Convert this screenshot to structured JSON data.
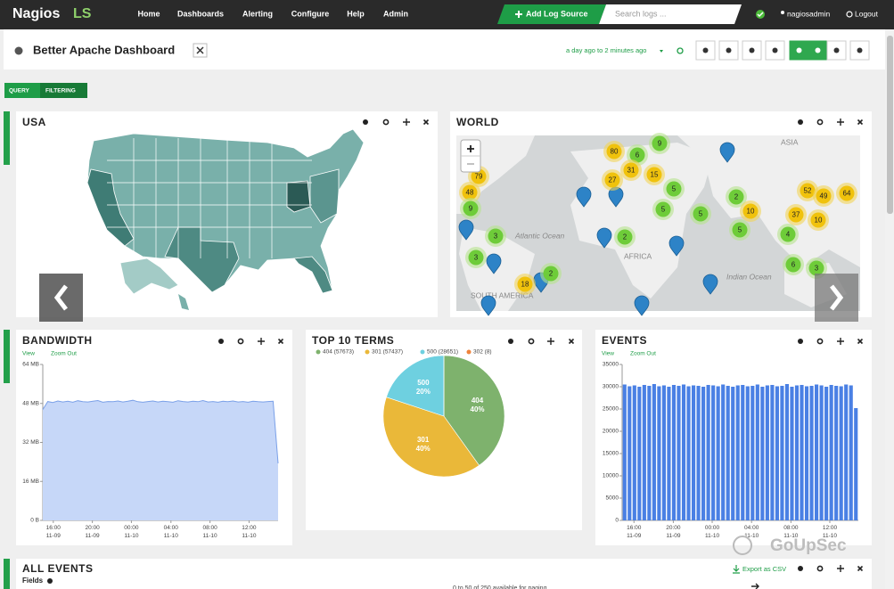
{
  "nav": {
    "brand": "Nagios",
    "brand_suffix": "LS",
    "items": [
      "Home",
      "Dashboards",
      "Alerting",
      "Configure",
      "Help",
      "Admin"
    ],
    "add_log_source": "Add Log Source",
    "search_placeholder": "Search logs ...",
    "user": "nagiosadmin",
    "logout": "Logout"
  },
  "dashboard": {
    "title": "Better Apache Dashboard",
    "time_range": "a day ago to 2 minutes ago",
    "tabs": [
      "QUERY",
      "FILTERING"
    ]
  },
  "usa": {
    "title": "USA"
  },
  "world": {
    "title": "WORLD",
    "regions": [
      "ASIA",
      "Atlantic Ocean",
      "AFRICA",
      "SOUTH AMERICA",
      "Indian Ocean"
    ],
    "clusters": [
      79,
      48,
      9,
      3,
      3,
      18,
      2,
      80,
      6,
      9,
      31,
      27,
      15,
      5,
      5,
      5,
      2,
      2,
      10,
      5,
      52,
      49,
      64,
      37,
      10,
      4,
      6,
      3
    ]
  },
  "panel_links": [
    "View",
    "Zoom Out"
  ],
  "all_events": {
    "title": "ALL EVENTS",
    "fields": "Fields",
    "export": "Export as CSV",
    "paging": "0 to 50 of 250 available for paging"
  },
  "watermark": "GoUpSec",
  "chart_data": [
    {
      "type": "area",
      "title": "BANDWIDTH",
      "color": "#7aa0e8",
      "fill": "#c6d7f8",
      "values": [
        45.5,
        48.8,
        48.4,
        49.0,
        48.6,
        48.9,
        48.5,
        49.1,
        48.7,
        48.6,
        48.9,
        49.2,
        48.5,
        48.8,
        48.7,
        49.0,
        48.6,
        48.9,
        49.3,
        48.7,
        48.5,
        48.8,
        49.0,
        48.6,
        48.9,
        48.7,
        48.5,
        49.1,
        48.8,
        48.6,
        48.9,
        48.7,
        49.2,
        48.6,
        48.8,
        48.5,
        48.9,
        48.7,
        49.0,
        48.6,
        48.8,
        48.5,
        48.9,
        48.7,
        48.6,
        48.8,
        48.9,
        23.4
      ],
      "xlim": [
        0,
        47
      ],
      "xticks": [
        {
          "value": 2.1,
          "label": "16:00 11-09"
        },
        {
          "value": 9.9,
          "label": "20:00 11-09"
        },
        {
          "value": 17.7,
          "label": "00:00 11-10"
        },
        {
          "value": 25.6,
          "label": "04:00 11-10"
        },
        {
          "value": 33.4,
          "label": "08:00 11-10"
        },
        {
          "value": 41.2,
          "label": "12:00 11-10"
        }
      ],
      "ylim": [
        0,
        64
      ],
      "yticks": [
        {
          "value": 0,
          "label": "0 B"
        },
        {
          "value": 16,
          "label": "16 MB"
        },
        {
          "value": 32,
          "label": "32 MB"
        },
        {
          "value": 48,
          "label": "48 MB"
        },
        {
          "value": 64,
          "label": "64 MB"
        }
      ]
    },
    {
      "type": "pie",
      "title": "TOP 10 TERMS",
      "categories": [
        "404",
        "301",
        "500",
        "302"
      ],
      "values": [
        57673,
        57437,
        28651,
        8
      ],
      "legend_labels": [
        "404 (57673)",
        "301 (57437)",
        "500 (28651)",
        "302 (8)"
      ],
      "percent_labels": [
        "40%",
        "40%",
        "20%",
        null
      ],
      "colors": [
        "#7eb26d",
        "#eab839",
        "#6ed0e0",
        "#ef843c"
      ]
    },
    {
      "type": "bar",
      "title": "EVENTS",
      "color": "#4a80e4",
      "values": [
        30500,
        30100,
        30300,
        30000,
        30400,
        30200,
        30600,
        30100,
        30300,
        30000,
        30400,
        30200,
        30500,
        30100,
        30300,
        30200,
        30000,
        30400,
        30300,
        30100,
        30500,
        30200,
        30000,
        30300,
        30400,
        30100,
        30200,
        30500,
        30000,
        30300,
        30400,
        30100,
        30200,
        30600,
        30000,
        30300,
        30400,
        30100,
        30200,
        30500,
        30300,
        30000,
        30400,
        30200,
        30100,
        30500,
        30300,
        25200
      ],
      "xlim": [
        0,
        48
      ],
      "xticks": [
        {
          "value": 2.4,
          "label": "16:00 11-09"
        },
        {
          "value": 10.4,
          "label": "20:00 11-09"
        },
        {
          "value": 18.3,
          "label": "00:00 11-10"
        },
        {
          "value": 26.3,
          "label": "04:00 11-10"
        },
        {
          "value": 34.3,
          "label": "08:00 11-10"
        },
        {
          "value": 42.2,
          "label": "12:00 11-10"
        }
      ],
      "ylim": [
        0,
        35000
      ],
      "yticks": [
        0,
        5000,
        10000,
        15000,
        20000,
        25000,
        30000,
        35000
      ]
    }
  ]
}
